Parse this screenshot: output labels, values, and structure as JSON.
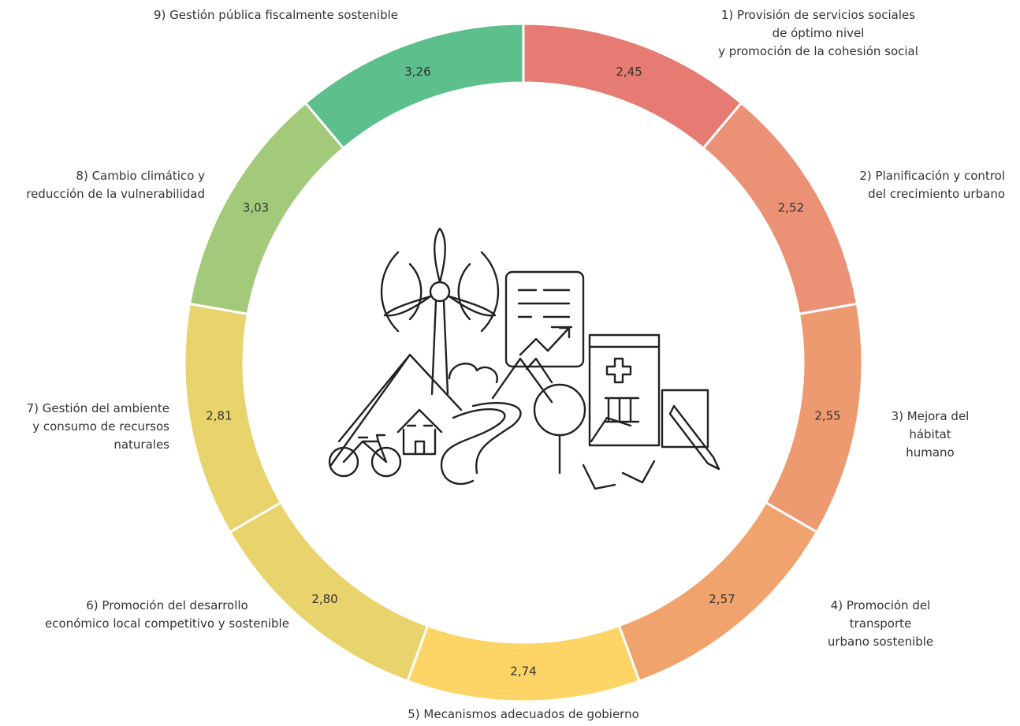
{
  "chart_data": {
    "type": "donut",
    "categories": [
      "1) Provisión de servicios sociales de óptimo nivel\ny promoción de la cohesión social",
      "2) Planificación y control\ndel crecimiento urbano",
      "3) Mejora del\nhábitat humano",
      "4) Promoción del transporte\nurbano sostenible",
      "5) Mecanismos adecuados de gobierno",
      "6) Promoción del desarrollo\neconómico local competitivo y sostenible",
      "7) Gestión del ambiente\ny consumo de recursos\nnaturales",
      "8) Cambio climático y\nreducción de la vulnerabilidad",
      "9) Gestión pública fiscalmente sostenible"
    ],
    "values": [
      2.45,
      2.52,
      2.55,
      2.57,
      2.74,
      2.8,
      2.81,
      3.03,
      3.26
    ],
    "value_labels": [
      "2,45",
      "2,52",
      "2,55",
      "2,57",
      "2,74",
      "2,80",
      "2,81",
      "3,03",
      "3,26"
    ],
    "colors": [
      "#e57b72",
      "#eb9175",
      "#ee9a70",
      "#f0a36c",
      "#fdd466",
      "#e9d36c",
      "#e8d36c",
      "#a3c97a",
      "#5cbf8c"
    ]
  }
}
